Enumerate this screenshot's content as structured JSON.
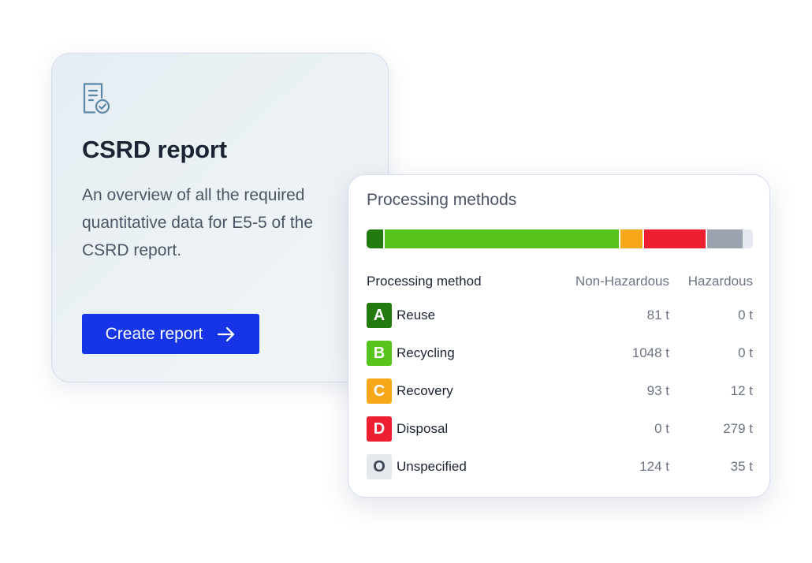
{
  "csrd_card": {
    "icon": "report-check-icon",
    "title": "CSRD report",
    "description": "An overview of all the required quantitative data for E5-5 of the CSRD report.",
    "button_label": "Create report",
    "button_icon": "arrow-right-icon",
    "accent_color": "#1535e6"
  },
  "processing": {
    "title": "Processing methods",
    "headers": {
      "method": "Processing method",
      "non_hazardous": "Non-Hazardous",
      "hazardous": "Hazardous"
    },
    "rows": [
      {
        "code": "A",
        "label": "Reuse",
        "non_hazardous": "81 t",
        "hazardous": "0 t",
        "color": "#237a0e",
        "text_color": "#ffffff",
        "bar_share": 0.0472
      },
      {
        "code": "B",
        "label": "Recycling",
        "non_hazardous": "1048 t",
        "hazardous": "0 t",
        "color": "#57c41c",
        "text_color": "#ffffff",
        "bar_share": 0.6102
      },
      {
        "code": "C",
        "label": "Recovery",
        "non_hazardous": "93 t",
        "hazardous": "12 t",
        "color": "#f7a818",
        "text_color": "#ffffff",
        "bar_share": 0.0612
      },
      {
        "code": "D",
        "label": "Disposal",
        "non_hazardous": "0 t",
        "hazardous": "279 t",
        "color": "#ee1f30",
        "text_color": "#ffffff",
        "bar_share": 0.1624
      },
      {
        "code": "O",
        "label": "Unspecified",
        "non_hazardous": "124 t",
        "hazardous": "35 t",
        "color": "#e4e7ec",
        "text_color": "#3d4656",
        "bar_color": "#9ca3b0",
        "bar_share": 0.0925
      }
    ]
  }
}
